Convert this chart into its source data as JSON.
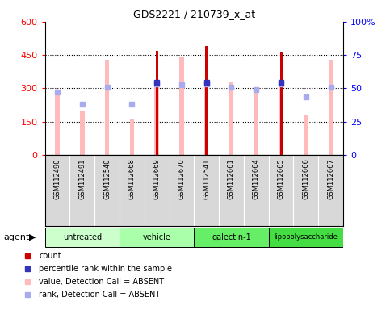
{
  "title": "GDS2221 / 210739_x_at",
  "samples": [
    "GSM112490",
    "GSM112491",
    "GSM112540",
    "GSM112668",
    "GSM112669",
    "GSM112670",
    "GSM112541",
    "GSM112661",
    "GSM112664",
    "GSM112665",
    "GSM112666",
    "GSM112667"
  ],
  "count_values": [
    null,
    null,
    null,
    null,
    470,
    null,
    490,
    null,
    null,
    460,
    null,
    null
  ],
  "pink_bar_values": [
    290,
    200,
    430,
    165,
    320,
    440,
    320,
    330,
    295,
    320,
    180,
    430
  ],
  "blue_sq_values": [
    285,
    230,
    305,
    230,
    320,
    315,
    320,
    305,
    295,
    320,
    260,
    305
  ],
  "blue_sq_present": [
    true,
    true,
    true,
    true,
    true,
    true,
    true,
    true,
    true,
    true,
    true,
    true
  ],
  "blue_dark_present": [
    false,
    false,
    false,
    false,
    true,
    false,
    true,
    false,
    false,
    true,
    false,
    false
  ],
  "groups": [
    {
      "label": "untreated",
      "start": 0,
      "end": 3,
      "color": "#ccffcc"
    },
    {
      "label": "vehicle",
      "start": 3,
      "end": 6,
      "color": "#aaffaa"
    },
    {
      "label": "galectin-1",
      "start": 6,
      "end": 9,
      "color": "#66ee66"
    },
    {
      "label": "lipopolysaccharide",
      "start": 9,
      "end": 12,
      "color": "#44dd44"
    }
  ],
  "ylim_left": [
    0,
    600
  ],
  "ylim_right": [
    0,
    100
  ],
  "yticks_left": [
    0,
    150,
    300,
    450,
    600
  ],
  "ytick_labels_left": [
    "0",
    "150",
    "300",
    "450",
    "600"
  ],
  "yticks_right": [
    0,
    25,
    50,
    75,
    100
  ],
  "ytick_labels_right": [
    "0",
    "25",
    "50",
    "75",
    "100%"
  ],
  "count_color": "#cc0000",
  "pink_color": "#ffbbbb",
  "blue_sq_color": "#aaaaee",
  "blue_dark_color": "#3333bb",
  "grid_lines": [
    150,
    300,
    450
  ],
  "pink_bar_width": 0.18,
  "count_bar_width": 0.1,
  "legend": [
    {
      "color": "#cc0000",
      "label": "count",
      "style": "square"
    },
    {
      "color": "#3333bb",
      "label": "percentile rank within the sample",
      "style": "square"
    },
    {
      "color": "#ffbbbb",
      "label": "value, Detection Call = ABSENT",
      "style": "square"
    },
    {
      "color": "#aaaaee",
      "label": "rank, Detection Call = ABSENT",
      "style": "square"
    }
  ]
}
